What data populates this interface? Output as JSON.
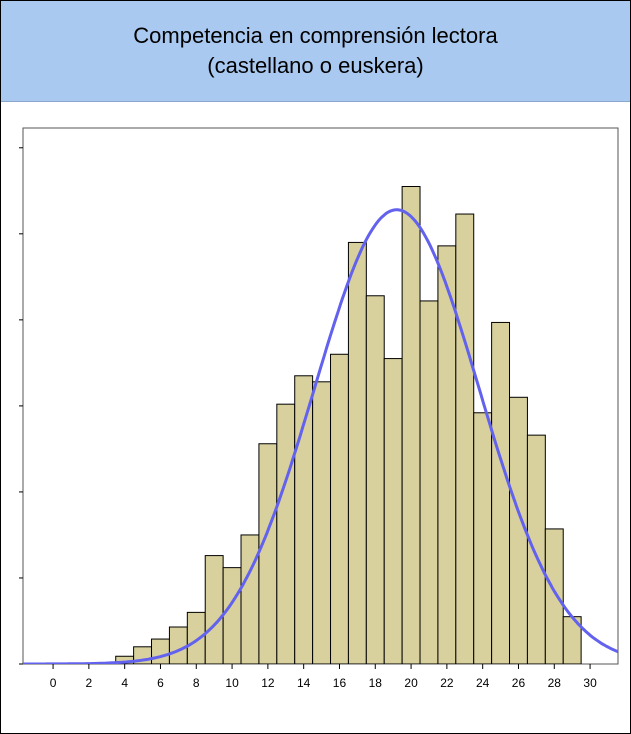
{
  "chart_data": {
    "type": "histogram",
    "title": [
      "Competencia en comprensión lectora",
      "(castellano o euskera)"
    ],
    "bins": [
      3.5,
      4.5,
      5.5,
      6.5,
      7.5,
      8.5,
      9.5,
      10.5,
      11.5,
      12.5,
      13.5,
      14.5,
      15.5,
      16.5,
      17.5,
      18.5,
      19.5,
      20.5,
      21.5,
      22.5,
      23.5,
      24.5,
      25.5,
      26.5,
      27.5,
      28.5,
      29.5
    ],
    "values": [
      0.09,
      0.2,
      0.29,
      0.43,
      0.6,
      1.26,
      1.12,
      1.5,
      2.56,
      3.02,
      3.35,
      3.28,
      3.6,
      4.9,
      4.28,
      3.55,
      5.55,
      4.22,
      4.86,
      5.23,
      2.92,
      3.97,
      3.1,
      2.66,
      1.57,
      0.55
    ],
    "color": "#d8d19e",
    "curve": {
      "mean": 19.2,
      "sd": 4.6,
      "peak": 5.28,
      "color": "#6262ee"
    },
    "xlim": [
      -1.68,
      31.56
    ],
    "xticks": [
      0,
      2,
      4,
      6,
      8,
      10,
      12,
      14,
      16,
      18,
      20,
      22,
      24,
      26,
      28,
      30
    ],
    "ylim": [
      0,
      6.23
    ],
    "yticks": [
      0,
      1,
      2,
      3,
      4,
      5,
      6
    ]
  }
}
